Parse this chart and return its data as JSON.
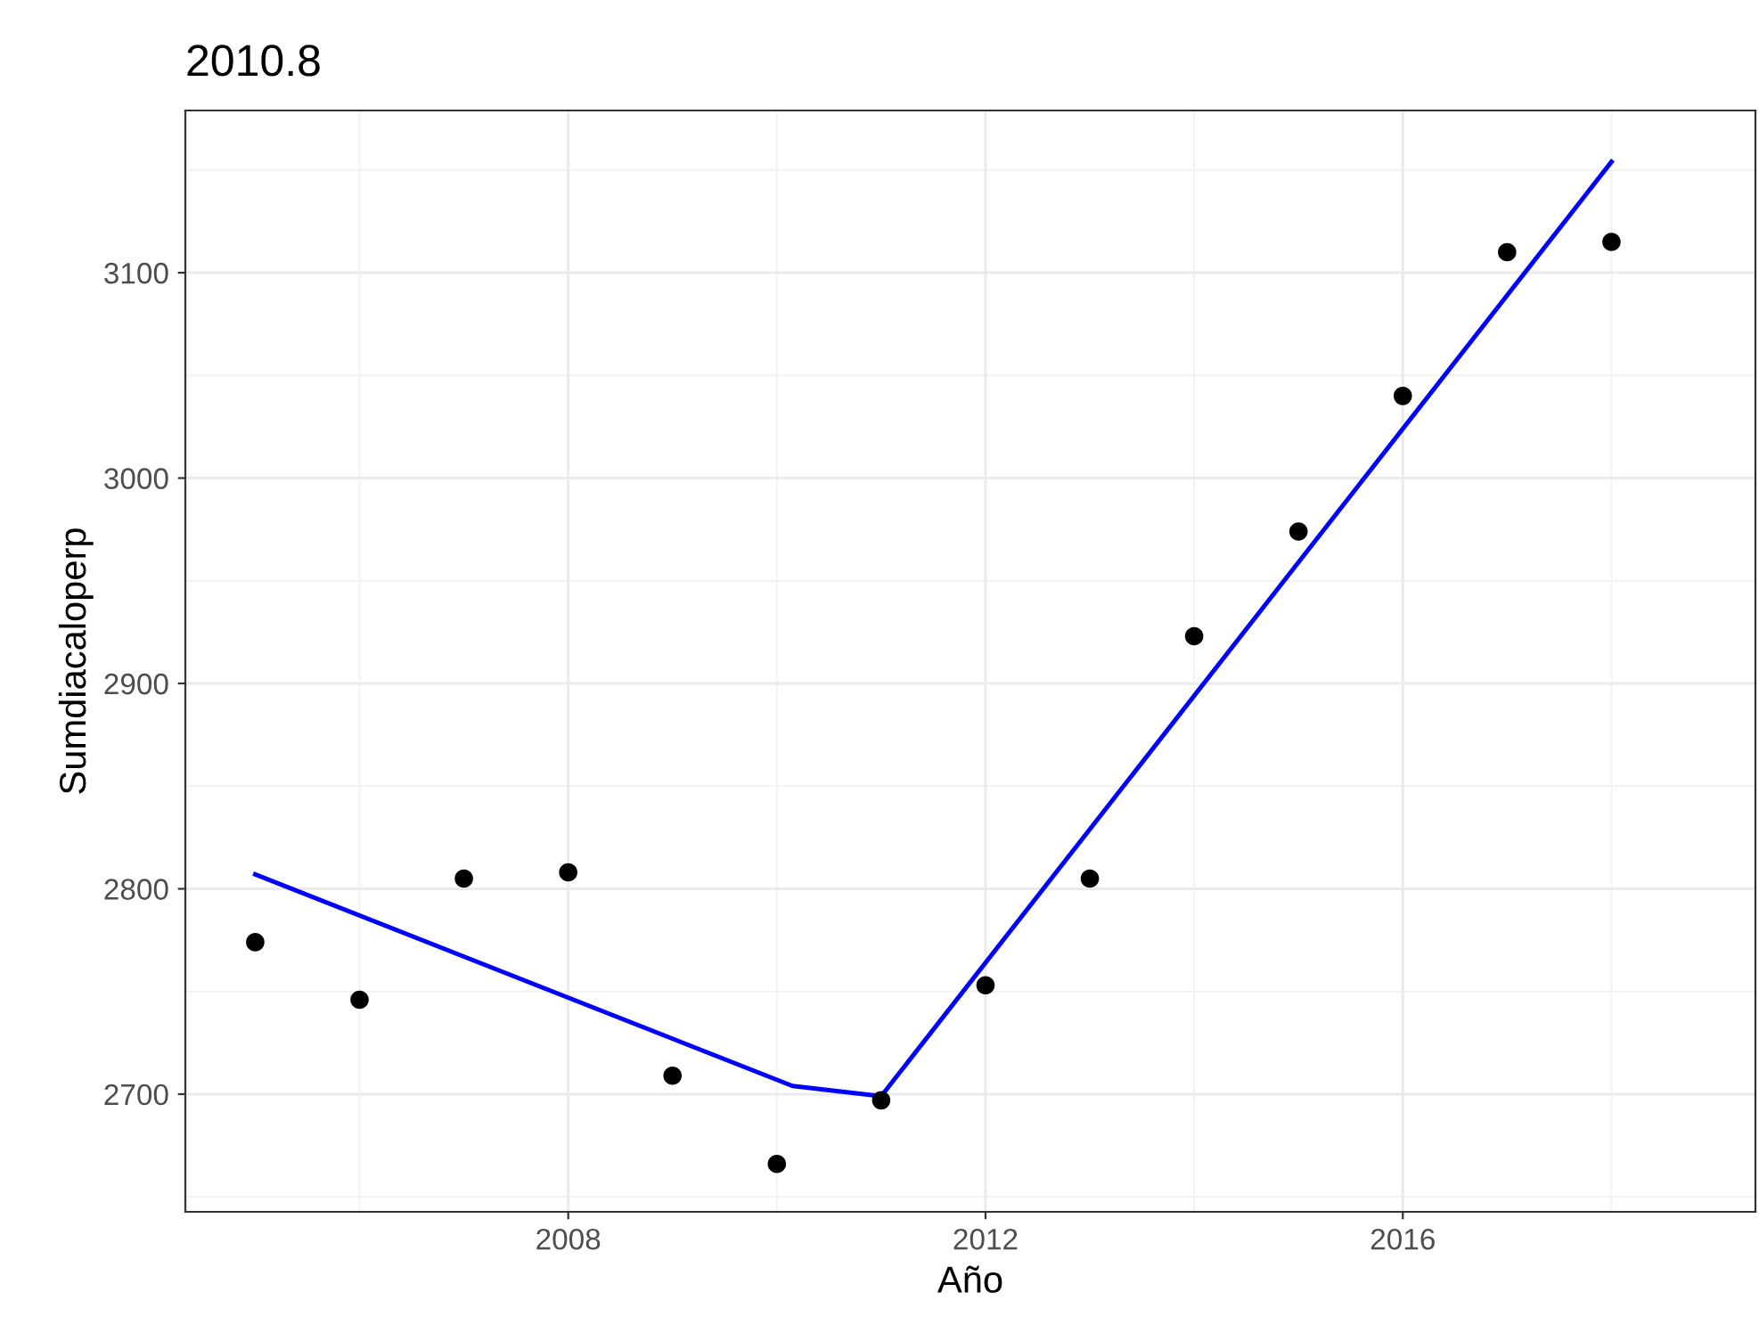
{
  "chart_data": {
    "type": "scatter",
    "title": "2010.8",
    "xlabel": "Año",
    "ylabel": "Sumdiacaloperp",
    "x": [
      2005,
      2006,
      2007,
      2008,
      2009,
      2010,
      2011,
      2012,
      2013,
      2014,
      2015,
      2016,
      2017,
      2018
    ],
    "series": [
      {
        "color": "#000000",
        "marker": "circle",
        "values": [
          2774,
          2746,
          2805,
          2808,
          2709,
          2666,
          2697,
          2753,
          2805,
          2923,
          2974,
          3040,
          3110,
          3115
        ]
      },
      {
        "type": "line",
        "marker": "none",
        "color": "#0000ff",
        "x": [
          2005,
          2010.15,
          2011,
          2018
        ],
        "values": [
          2807,
          2704,
          2699,
          3154
        ]
      }
    ],
    "xlim": [
      2004.33,
      2019.38
    ],
    "ylim": [
      2642.7,
      3179
    ],
    "xticks": [
      2008,
      2012,
      2016
    ],
    "yticks": [
      2700,
      2800,
      2900,
      3000,
      3100
    ],
    "grid": true,
    "line_style": "solid"
  }
}
